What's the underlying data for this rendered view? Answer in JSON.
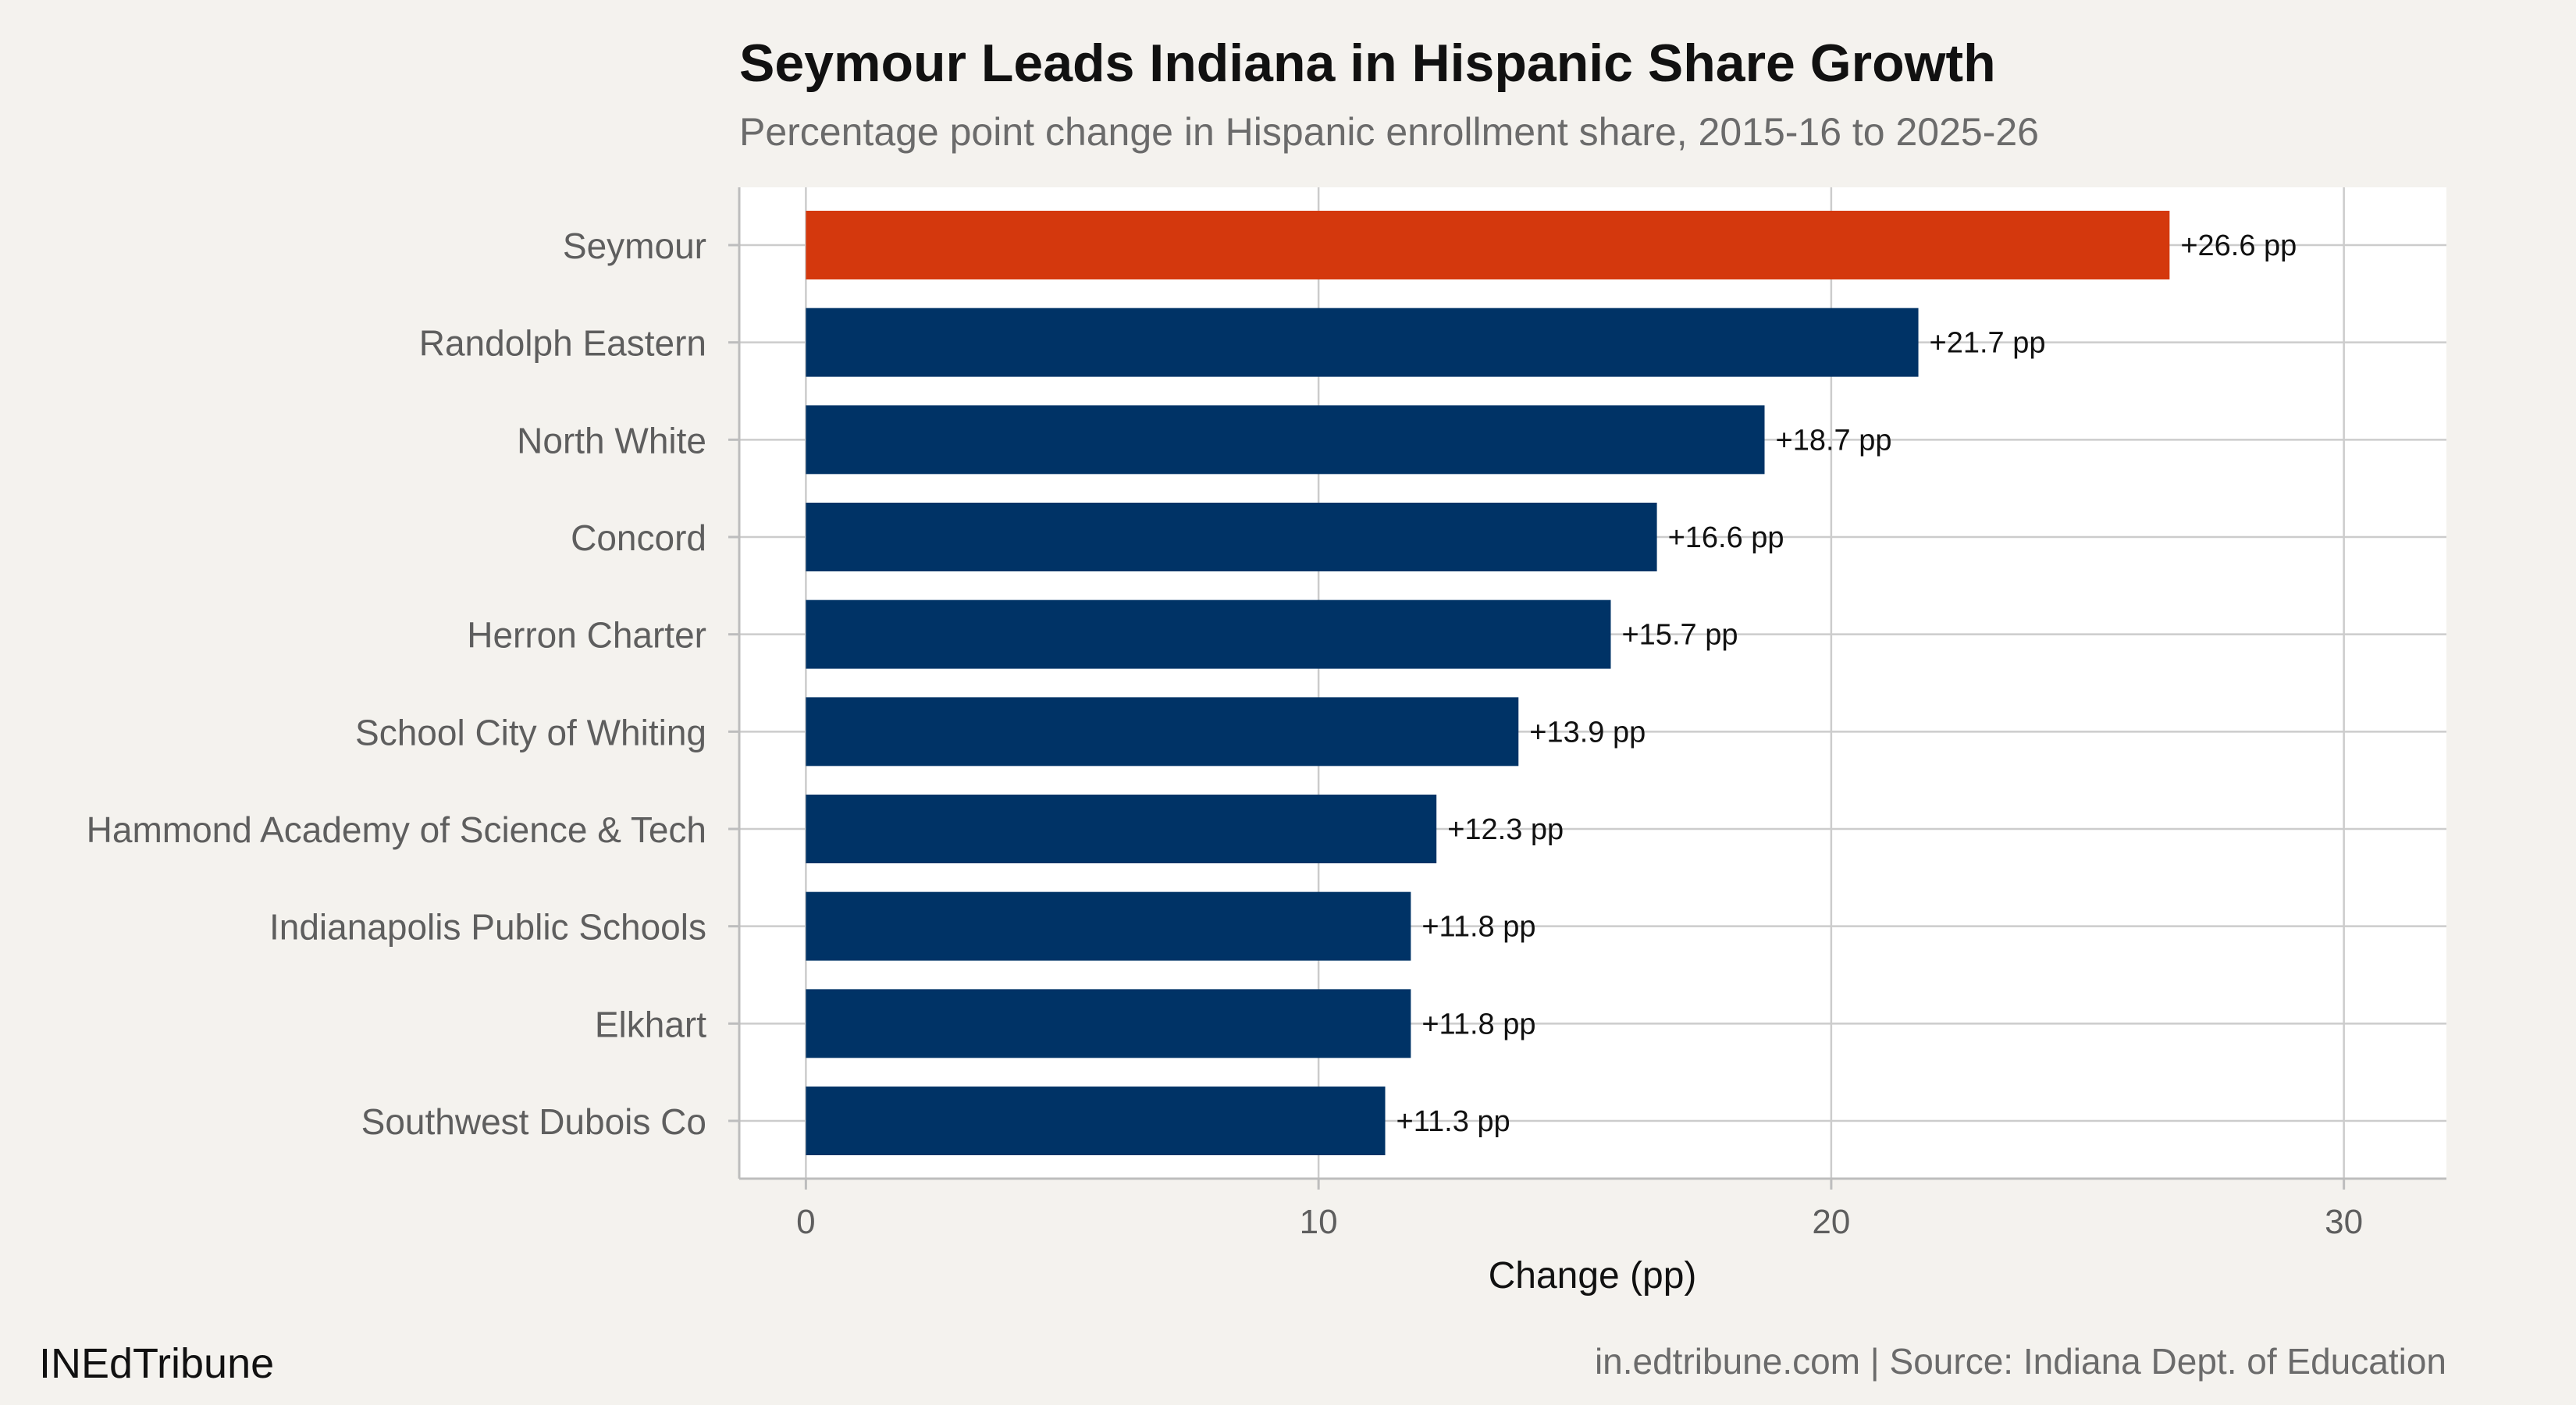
{
  "chart_data": {
    "type": "bar",
    "orientation": "horizontal",
    "title": "Seymour Leads Indiana in Hispanic Share Growth",
    "subtitle": "Percentage point change in Hispanic enrollment share, 2015-16 to 2025-26",
    "xlabel": "Change (pp)",
    "ylabel": "",
    "xlim": [
      -1.3,
      32
    ],
    "x_ticks": [
      0,
      10,
      20,
      30
    ],
    "grid": true,
    "categories": [
      "Seymour",
      "Randolph Eastern",
      "North White",
      "Concord",
      "Herron Charter",
      "School City of Whiting",
      "Hammond Academy of Science & Tech",
      "Indianapolis Public Schools",
      "Elkhart",
      "Southwest Dubois Co"
    ],
    "values": [
      26.6,
      21.7,
      18.7,
      16.6,
      15.7,
      13.9,
      12.3,
      11.8,
      11.8,
      11.3
    ],
    "data_labels": [
      "+26.6 pp",
      "+21.7 pp",
      "+18.7 pp",
      "+16.6 pp",
      "+15.7 pp",
      "+13.9 pp",
      "+12.3 pp",
      "+11.8 pp",
      "+11.8 pp",
      "+11.3 pp"
    ],
    "highlight_category": "Seymour",
    "colors": {
      "highlight": "#d4380d",
      "default": "#003366",
      "panel": "#ffffff",
      "background": "#f4f2ee",
      "grid": "#cccccc"
    }
  },
  "footer": {
    "brand": "INEdTribune",
    "source": "in.edtribune.com | Source: Indiana Dept. of Education"
  }
}
